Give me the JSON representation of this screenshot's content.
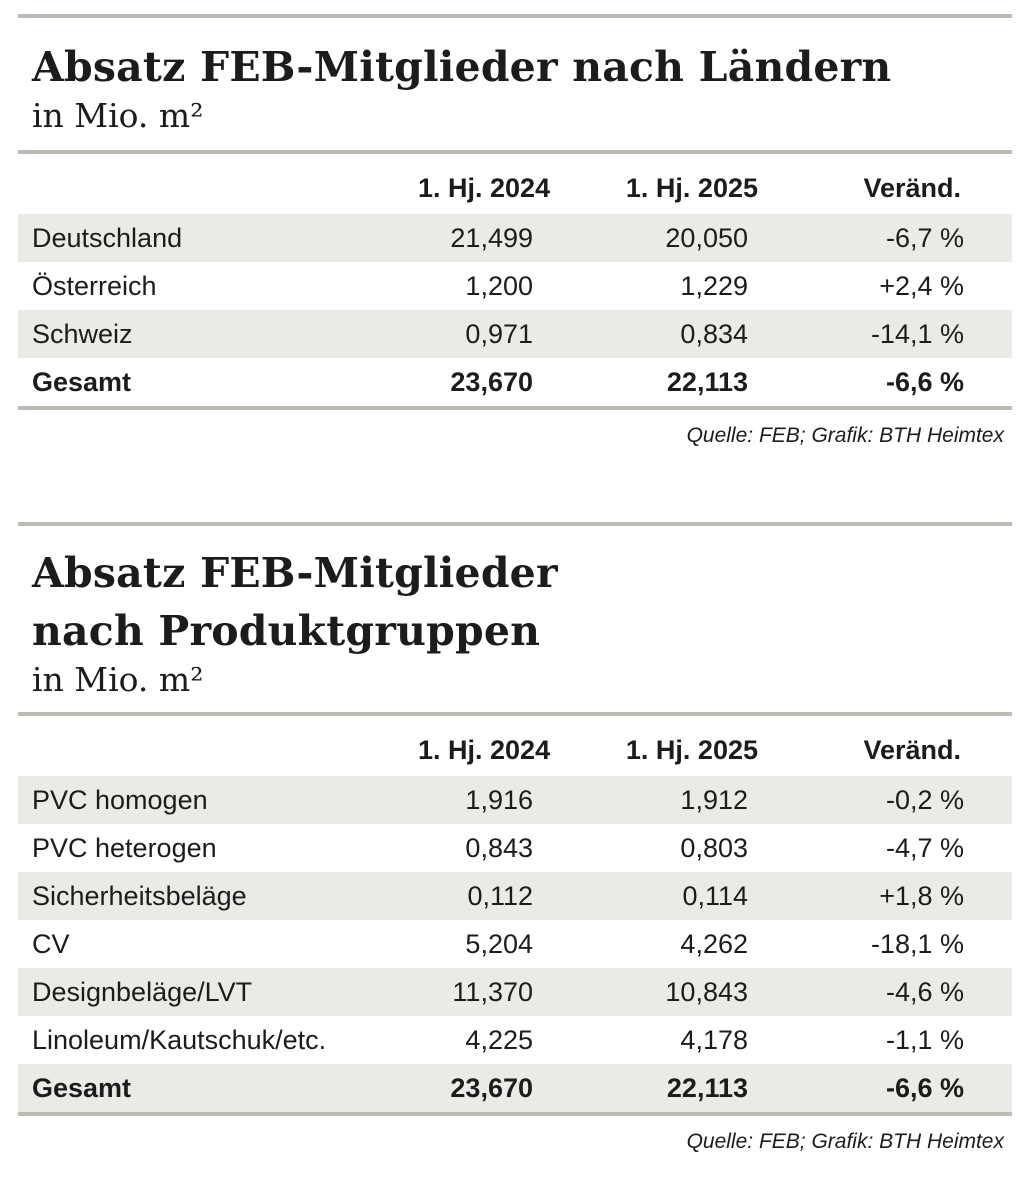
{
  "tables": [
    {
      "title_lines": [
        "Absatz FEB-Mitglieder nach Ländern"
      ],
      "subtitle": "in Mio. m²",
      "headers": [
        "",
        "1. Hj. 2024",
        "1. Hj. 2025",
        "Veränd."
      ],
      "rows": [
        [
          "Deutschland",
          "21,499",
          "20,050",
          "-6,7 %"
        ],
        [
          "Österreich",
          "1,200",
          "1,229",
          "+2,4 %"
        ],
        [
          "Schweiz",
          "0,971",
          "0,834",
          "-14,1 %"
        ]
      ],
      "total": [
        "Gesamt",
        "23,670",
        "22,113",
        "-6,6 %"
      ],
      "source": "Quelle: FEB; Grafik: BTH Heimtex"
    },
    {
      "title_lines": [
        "Absatz FEB-Mitglieder",
        "nach Produktgruppen"
      ],
      "subtitle": "in Mio. m²",
      "headers": [
        "",
        "1. Hj. 2024",
        "1. Hj. 2025",
        "Veränd."
      ],
      "rows": [
        [
          "PVC homogen",
          "1,916",
          "1,912",
          "-0,2 %"
        ],
        [
          "PVC heterogen",
          "0,843",
          "0,803",
          "-4,7 %"
        ],
        [
          "Sicherheitsbeläge",
          "0,112",
          "0,114",
          "+1,8 %"
        ],
        [
          "CV",
          "5,204",
          "4,262",
          "-18,1 %"
        ],
        [
          "Designbeläge/LVT",
          "11,370",
          "10,843",
          "-4,6 %"
        ],
        [
          "Linoleum/Kautschuk/etc.",
          "4,225",
          "4,178",
          "-1,1 %"
        ]
      ],
      "total": [
        "Gesamt",
        "23,670",
        "22,113",
        "-6,6 %"
      ],
      "source": "Quelle: FEB; Grafik: BTH Heimtex"
    }
  ]
}
